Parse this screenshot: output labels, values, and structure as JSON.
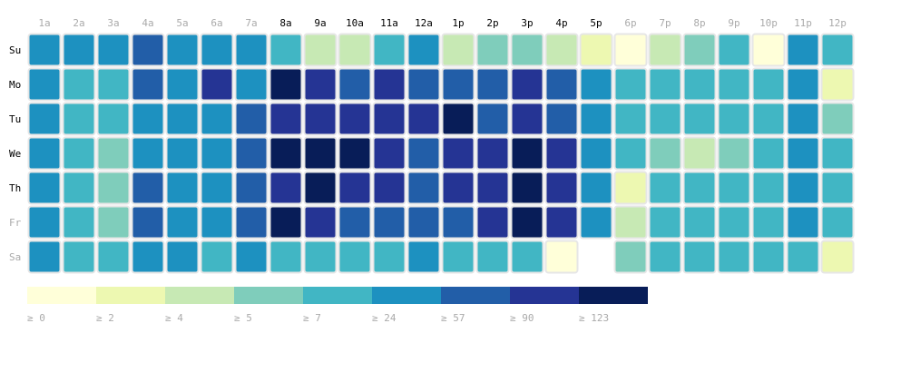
{
  "chart_data": {
    "type": "heatmap",
    "title": "",
    "x_labels": [
      "1a",
      "2a",
      "3a",
      "4a",
      "5a",
      "6a",
      "7a",
      "8a",
      "9a",
      "10a",
      "11a",
      "12a",
      "1p",
      "2p",
      "3p",
      "4p",
      "5p",
      "6p",
      "7p",
      "8p",
      "9p",
      "10p",
      "11p",
      "12p"
    ],
    "y_labels": [
      "Su",
      "Mo",
      "Tu",
      "We",
      "Th",
      "Fr",
      "Sa"
    ],
    "legend": {
      "labels": [
        "≥ 0",
        "≥ 2",
        "≥ 4",
        "≥ 5",
        "≥ 7",
        "≥ 24",
        "≥ 57",
        "≥ 90",
        "≥ 123"
      ],
      "thresholds": [
        0,
        2,
        4,
        5,
        7,
        24,
        57,
        90,
        123
      ],
      "colors": [
        "#ffffd9",
        "#edf8b1",
        "#c7e9b4",
        "#7fcdbb",
        "#41b6c4",
        "#1d91c0",
        "#225ea8",
        "#253494",
        "#081d58"
      ],
      "placement": "bottom-left"
    },
    "label_colors": {
      "highlighted": "#000000",
      "dimmed": "#aaaaaa"
    },
    "highlighted_x": [
      "8a",
      "9a",
      "10a",
      "11a",
      "12a",
      "1p",
      "2p",
      "3p",
      "4p",
      "5p"
    ],
    "highlighted_y": [
      "Su",
      "Mo",
      "Tu",
      "We",
      "Th"
    ],
    "values": [
      [
        24,
        24,
        24,
        57,
        24,
        24,
        24,
        7,
        4,
        4,
        7,
        24,
        4,
        5,
        5,
        4,
        2,
        0,
        4,
        5,
        7,
        0,
        24,
        7
      ],
      [
        24,
        7,
        7,
        57,
        24,
        90,
        24,
        123,
        90,
        57,
        90,
        57,
        57,
        57,
        90,
        57,
        24,
        7,
        7,
        7,
        7,
        7,
        24,
        2
      ],
      [
        24,
        7,
        7,
        24,
        24,
        24,
        57,
        90,
        90,
        90,
        90,
        90,
        123,
        57,
        90,
        57,
        24,
        7,
        7,
        7,
        7,
        7,
        24,
        5
      ],
      [
        24,
        7,
        5,
        24,
        24,
        24,
        57,
        123,
        123,
        123,
        90,
        57,
        90,
        90,
        123,
        90,
        24,
        7,
        5,
        4,
        5,
        7,
        24,
        7
      ],
      [
        24,
        7,
        5,
        57,
        24,
        24,
        57,
        90,
        123,
        90,
        90,
        57,
        90,
        90,
        123,
        90,
        24,
        2,
        7,
        7,
        7,
        7,
        24,
        7
      ],
      [
        24,
        7,
        5,
        57,
        24,
        24,
        57,
        123,
        90,
        57,
        57,
        57,
        57,
        90,
        123,
        90,
        24,
        4,
        7,
        7,
        7,
        7,
        24,
        7
      ],
      [
        24,
        7,
        7,
        24,
        24,
        7,
        24,
        7,
        7,
        7,
        7,
        24,
        7,
        7,
        7,
        0,
        null,
        5,
        7,
        7,
        7,
        7,
        7,
        2
      ]
    ]
  }
}
